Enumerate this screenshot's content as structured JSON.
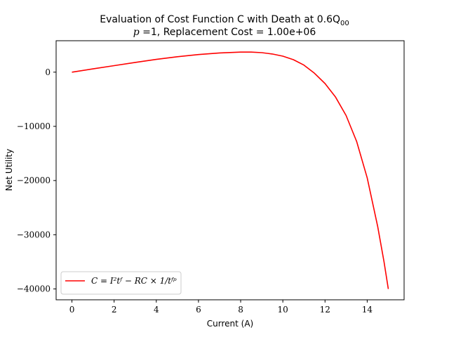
{
  "chart_data": {
    "type": "line",
    "title_line1": "Evaluation of Cost Function C with Death at 0.6Q",
    "title_line1_subscript": "00",
    "title_line2_math": "p",
    "title_line2_rest": " =1, Replacement Cost = 1.00e+06",
    "xlabel": "Current (A)",
    "ylabel": "Net Utility",
    "xlim": [
      -0.75,
      15.75
    ],
    "ylim": [
      -42000,
      5800
    ],
    "xticks": [
      0,
      2,
      4,
      6,
      8,
      10,
      12,
      14
    ],
    "xtick_labels": [
      "0",
      "2",
      "4",
      "6",
      "8",
      "10",
      "12",
      "14"
    ],
    "yticks": [
      0,
      -10000,
      -20000,
      -30000,
      -40000
    ],
    "ytick_labels": [
      "0",
      "−10000",
      "−20000",
      "−30000",
      "−40000"
    ],
    "legend_position": "lower-left",
    "grid": false,
    "series": [
      {
        "name": "C = I²t_f − RC × 1/t_f^p",
        "legend_label": "C = I²tᶠ − RC × 1/tᶠᵖ",
        "color": "#ff0000",
        "x": [
          0,
          1,
          2,
          3,
          4,
          5,
          6,
          7,
          8,
          8.5,
          9,
          9.5,
          10,
          10.5,
          11,
          11.5,
          12,
          12.5,
          13,
          13.5,
          14,
          14.5,
          14.8,
          15
        ],
        "y": [
          0,
          600,
          1200,
          1800,
          2350,
          2850,
          3250,
          3550,
          3700,
          3700,
          3600,
          3350,
          2950,
          2300,
          1300,
          -200,
          -2100,
          -4600,
          -8000,
          -12800,
          -19500,
          -28500,
          -35000,
          -40000
        ]
      }
    ]
  }
}
